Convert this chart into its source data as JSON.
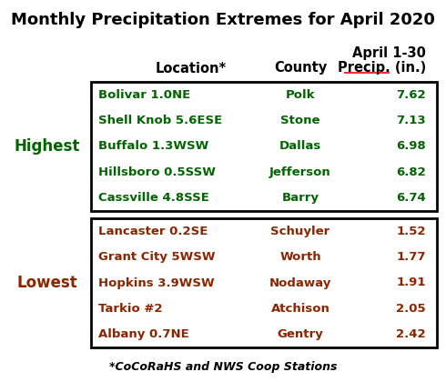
{
  "title": "Monthly Precipitation Extremes for April 2020",
  "header_col1": "Location*",
  "header_col2": "County",
  "header_col3_line1": "April 1-30",
  "header_col3_line2": "Precip. (in.)",
  "highest_label": "Highest",
  "lowest_label": "Lowest",
  "highest_color": "#006400",
  "lowest_color": "#8B2500",
  "highest_rows": [
    [
      "Bolivar 1.0NE",
      "Polk",
      "7.62"
    ],
    [
      "Shell Knob 5.6ESE",
      "Stone",
      "7.13"
    ],
    [
      "Buffalo 1.3WSW",
      "Dallas",
      "6.98"
    ],
    [
      "Hillsboro 0.5SSW",
      "Jefferson",
      "6.82"
    ],
    [
      "Cassville 4.8SSE",
      "Barry",
      "6.74"
    ]
  ],
  "lowest_rows": [
    [
      "Lancaster 0.2SE",
      "Schuyler",
      "1.52"
    ],
    [
      "Grant City 5WSW",
      "Worth",
      "1.77"
    ],
    [
      "Hopkins 3.9WSW",
      "Nodaway",
      "1.91"
    ],
    [
      "Tarkio #2",
      "Atchison",
      "2.05"
    ],
    [
      "Albany 0.7NE",
      "Gentry",
      "2.42"
    ]
  ],
  "footnote": "*CoCoRaHS and NWS Coop Stations",
  "bg_color": "#ffffff",
  "title_color": "#000000",
  "header_color": "#000000",
  "border_color": "#000000",
  "title_fontsize": 13,
  "header_fontsize": 10.5,
  "label_fontsize": 12,
  "row_fontsize": 9.5,
  "footnote_fontsize": 9
}
